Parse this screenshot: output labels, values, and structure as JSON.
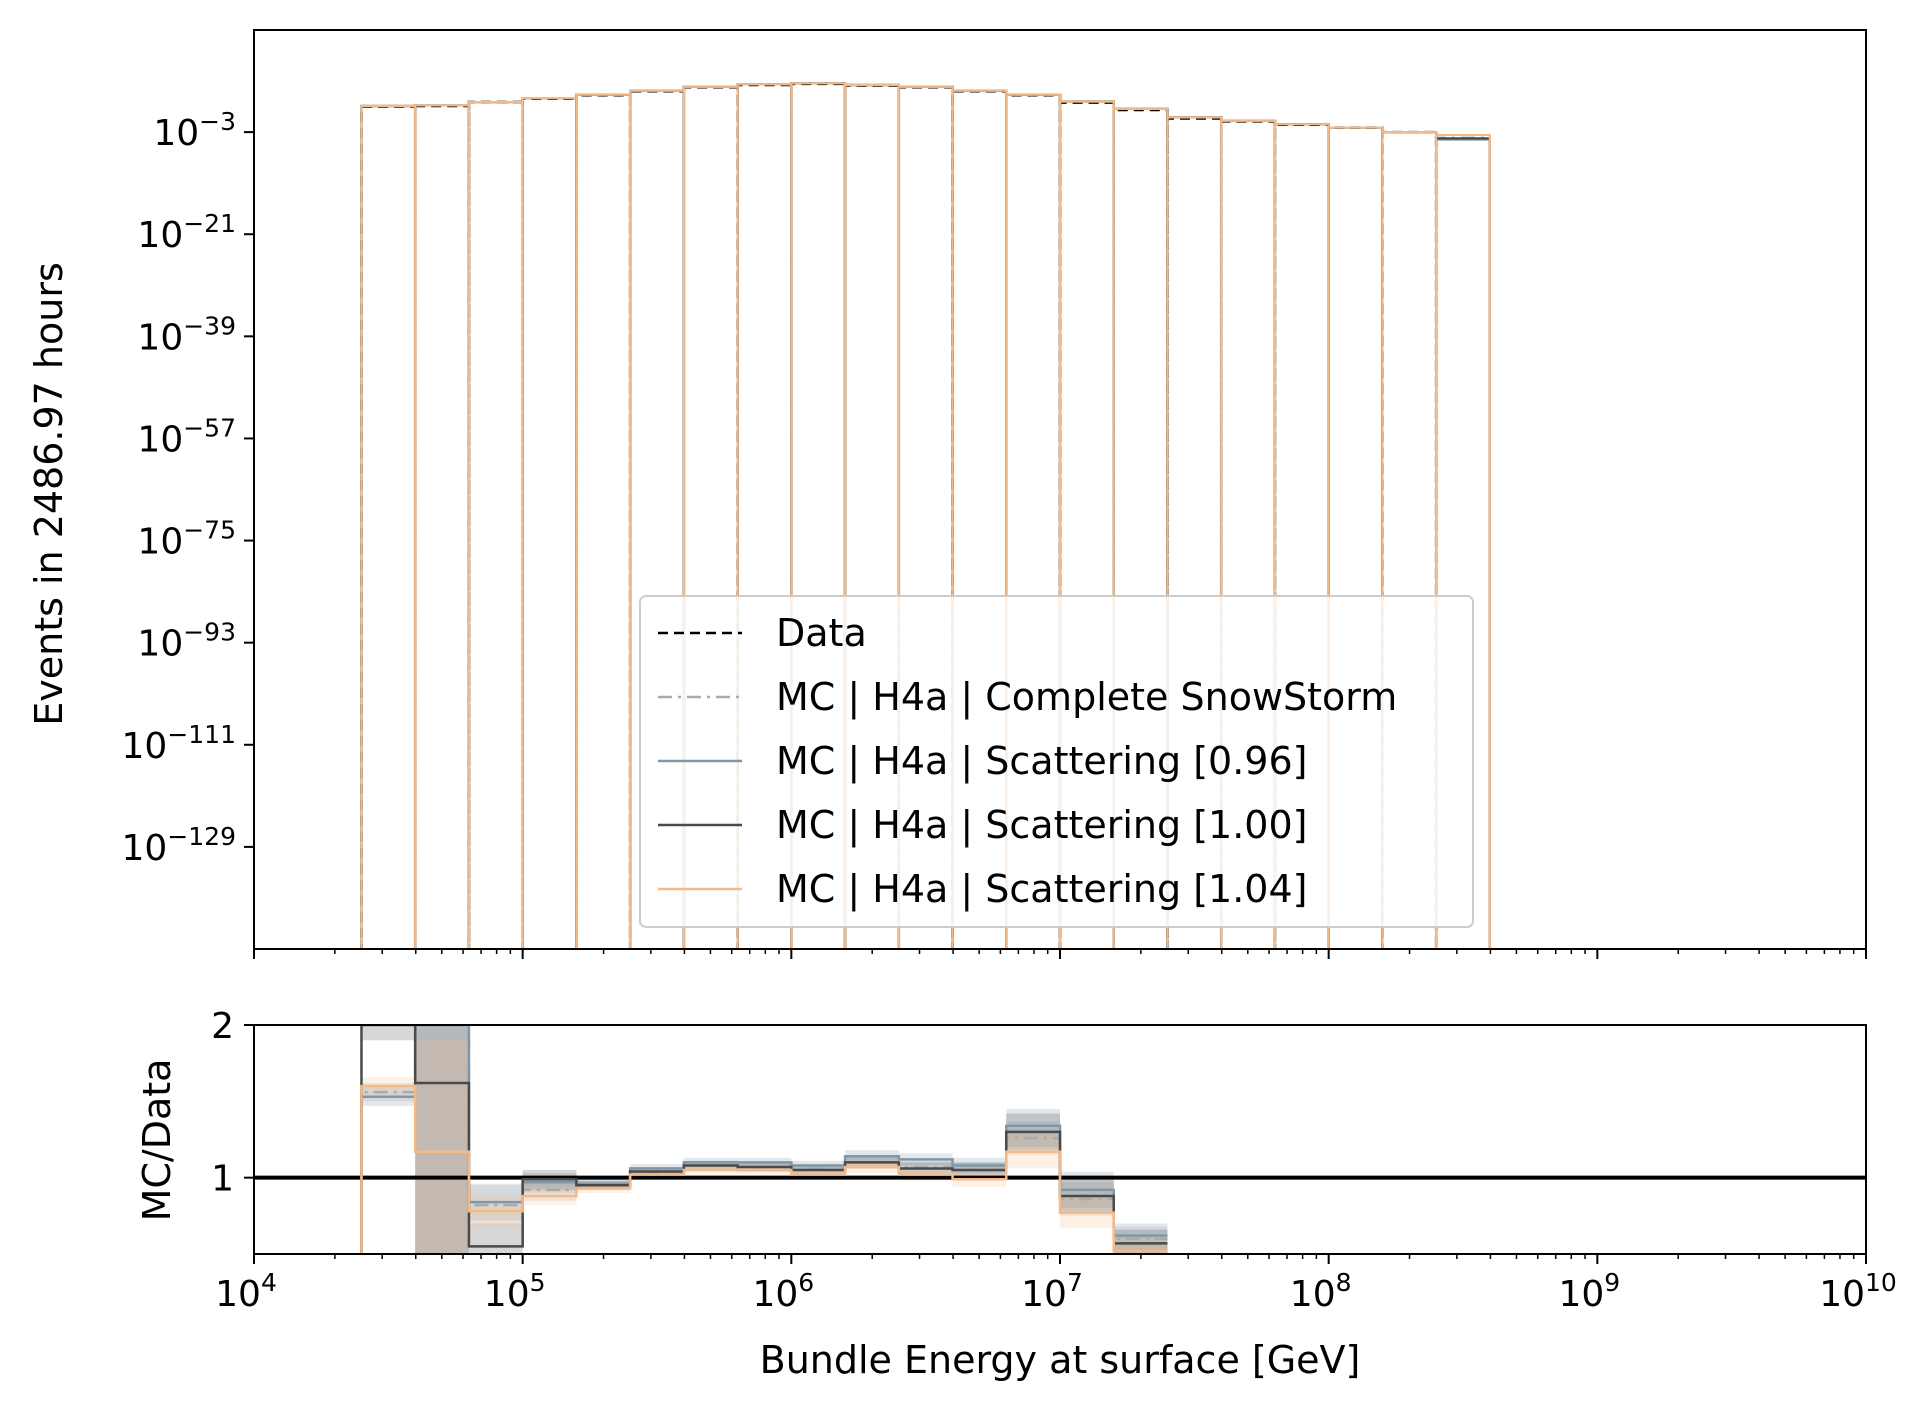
{
  "chart_data": [
    {
      "type": "step-histogram",
      "panel": "main",
      "xlabel": "",
      "ylabel": "Events in 2486.97 hours",
      "xscale": "log",
      "yscale": "log",
      "xlim": [
        10000,
        10000000000
      ],
      "ylim_exponent": [
        -147,
        15
      ],
      "yticks": [
        {
          "label": "10",
          "exp": "−3",
          "value_exp": -3
        },
        {
          "label": "10",
          "exp": "−21",
          "value_exp": -21
        },
        {
          "label": "10",
          "exp": "−39",
          "value_exp": -39
        },
        {
          "label": "10",
          "exp": "−57",
          "value_exp": -57
        },
        {
          "label": "10",
          "exp": "−75",
          "value_exp": -75
        },
        {
          "label": "10",
          "exp": "−93",
          "value_exp": -93
        },
        {
          "label": "10",
          "exp": "−111",
          "value_exp": -111
        },
        {
          "label": "10",
          "exp": "−129",
          "value_exp": -129
        }
      ],
      "bin_edges_log10": [
        4.4,
        4.6,
        4.8,
        5.0,
        5.2,
        5.4,
        5.6,
        5.8,
        6.0,
        6.2,
        6.4,
        6.6,
        6.8,
        7.0,
        7.2,
        7.4,
        7.6,
        7.8,
        8.0,
        8.2,
        8.4,
        8.6
      ],
      "legend": {
        "location": "lower center",
        "entries": [
          {
            "label": "Data",
            "color": "#000000",
            "style": "dashed"
          },
          {
            "label": "MC | H4a | Complete SnowStorm",
            "color": "#aaaaaa",
            "style": "dashdot"
          },
          {
            "label": "MC | H4a | Scattering [0.96]",
            "color": "#7f97a8",
            "style": "solid"
          },
          {
            "label": "MC | H4a | Scattering [1.00]",
            "color": "#4a4a4a",
            "style": "solid"
          },
          {
            "label": "MC | H4a | Scattering [1.04]",
            "color": "#f5b987",
            "style": "solid"
          }
        ]
      },
      "series": [
        {
          "name": "Data",
          "log10_values": [
            1.5,
            1.6,
            2.3,
            2.9,
            3.5,
            4.2,
            4.9,
            5.3,
            5.5,
            5.2,
            4.9,
            4.2,
            3.5,
            2.2,
            0.9,
            -0.6,
            -1.1,
            -1.7,
            -2.2,
            -3.0,
            null
          ]
        },
        {
          "name": "MC | H4a | Complete SnowStorm",
          "log10_values": [
            1.6,
            1.7,
            2.3,
            3.0,
            3.6,
            4.3,
            5.0,
            5.4,
            5.6,
            5.3,
            5.0,
            4.3,
            3.6,
            2.4,
            1.1,
            -0.4,
            -1.0,
            -1.6,
            -2.2,
            -3.0,
            -4.0
          ]
        },
        {
          "name": "MC | H4a | Scattering [0.96]",
          "log10_values": [
            1.6,
            1.7,
            2.3,
            3.0,
            3.6,
            4.3,
            5.0,
            5.4,
            5.6,
            5.3,
            5.0,
            4.3,
            3.6,
            2.4,
            1.1,
            -0.4,
            -1.0,
            -1.6,
            -2.2,
            -3.0,
            -4.3
          ]
        },
        {
          "name": "MC | H4a | Scattering [1.00]",
          "log10_values": [
            1.6,
            1.7,
            2.3,
            3.0,
            3.6,
            4.3,
            5.0,
            5.4,
            5.6,
            5.3,
            5.0,
            4.3,
            3.6,
            2.4,
            1.1,
            -0.4,
            -1.0,
            -1.6,
            -2.2,
            -3.0,
            -4.1
          ]
        },
        {
          "name": "MC | H4a | Scattering [1.04]",
          "log10_values": [
            1.6,
            1.7,
            2.3,
            3.0,
            3.6,
            4.3,
            5.0,
            5.4,
            5.6,
            5.3,
            5.0,
            4.3,
            3.6,
            2.4,
            1.1,
            -0.4,
            -1.0,
            -1.6,
            -2.2,
            -3.0,
            -3.5
          ]
        }
      ]
    },
    {
      "type": "step-ratio",
      "panel": "ratio",
      "xlabel": "Bundle Energy at surface [GeV]",
      "ylabel": "MC/Data",
      "xscale": "log",
      "xlim": [
        10000,
        10000000000
      ],
      "ylim": [
        0.5,
        2.0
      ],
      "yticks": [
        1,
        2
      ],
      "xticks": [
        {
          "base": "10",
          "exp": "4",
          "value": 10000
        },
        {
          "base": "10",
          "exp": "5",
          "value": 100000
        },
        {
          "base": "10",
          "exp": "6",
          "value": 1000000
        },
        {
          "base": "10",
          "exp": "7",
          "value": 10000000
        },
        {
          "base": "10",
          "exp": "8",
          "value": 100000000
        },
        {
          "base": "10",
          "exp": "9",
          "value": 1000000000
        },
        {
          "base": "10",
          "exp": "10",
          "value": 10000000000
        }
      ],
      "bin_edges_log10": [
        4.4,
        4.6,
        4.8,
        5.0,
        5.2,
        5.4,
        5.6,
        5.8,
        6.0,
        6.2,
        6.4,
        6.6,
        6.8,
        7.0,
        7.2,
        7.4
      ],
      "reference_line": 1.0,
      "series": [
        {
          "name": "MC | H4a | Complete SnowStorm",
          "values": [
            1.56,
            2.0,
            0.82,
            0.92,
            0.95,
            1.03,
            1.08,
            1.07,
            1.06,
            1.1,
            1.07,
            1.05,
            1.26,
            0.86,
            0.6
          ],
          "band_low": [
            1.5,
            0.3,
            0.7,
            0.85,
            0.92,
            1.0,
            1.05,
            1.04,
            1.03,
            1.06,
            1.03,
            1.0,
            1.15,
            0.75,
            0.5
          ],
          "band_high": [
            1.62,
            2.0,
            0.95,
            0.99,
            0.98,
            1.06,
            1.11,
            1.1,
            1.09,
            1.14,
            1.11,
            1.1,
            1.37,
            0.97,
            0.68
          ]
        },
        {
          "name": "MC | H4a | Scattering [0.96]",
          "values": [
            1.53,
            2.0,
            0.84,
            0.97,
            0.96,
            1.06,
            1.1,
            1.1,
            1.08,
            1.14,
            1.12,
            1.08,
            1.34,
            0.92,
            0.62
          ],
          "band_low": [
            1.47,
            0.3,
            0.72,
            0.9,
            0.93,
            1.03,
            1.07,
            1.07,
            1.05,
            1.1,
            1.08,
            1.03,
            1.2,
            0.8,
            0.5
          ],
          "band_high": [
            1.59,
            2.0,
            0.96,
            1.03,
            0.99,
            1.09,
            1.13,
            1.13,
            1.11,
            1.18,
            1.16,
            1.13,
            1.45,
            1.04,
            0.7
          ]
        },
        {
          "name": "MC | H4a | Scattering [1.00]",
          "values": [
            2.0,
            1.62,
            0.55,
            0.99,
            0.95,
            1.04,
            1.08,
            1.07,
            1.05,
            1.1,
            1.06,
            1.05,
            1.3,
            0.88,
            0.57
          ],
          "band_low": [
            1.9,
            0.3,
            0.45,
            0.92,
            0.92,
            1.01,
            1.05,
            1.04,
            1.02,
            1.06,
            1.02,
            1.0,
            1.18,
            0.77,
            0.5
          ],
          "band_high": [
            2.0,
            2.0,
            0.7,
            1.05,
            0.98,
            1.07,
            1.11,
            1.1,
            1.08,
            1.14,
            1.1,
            1.1,
            1.42,
            0.99,
            0.66
          ]
        },
        {
          "name": "MC | H4a | Scattering [1.04]",
          "values": [
            1.6,
            1.17,
            0.78,
            0.88,
            0.93,
            1.02,
            1.05,
            1.05,
            1.02,
            1.07,
            1.02,
            0.99,
            1.17,
            0.77,
            0.52
          ],
          "band_low": [
            1.54,
            0.3,
            0.67,
            0.82,
            0.9,
            0.99,
            1.02,
            1.02,
            0.99,
            1.03,
            0.98,
            0.94,
            1.06,
            0.67,
            0.5
          ],
          "band_high": [
            1.66,
            1.9,
            0.88,
            0.94,
            0.96,
            1.05,
            1.08,
            1.08,
            1.05,
            1.11,
            1.06,
            1.04,
            1.28,
            0.87,
            0.6
          ]
        }
      ]
    }
  ]
}
